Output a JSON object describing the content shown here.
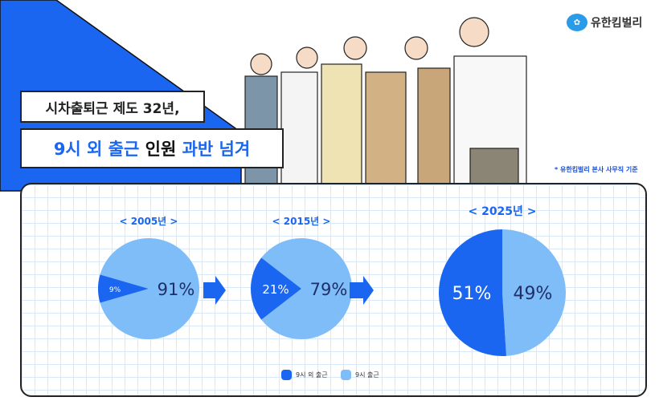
{
  "headline": {
    "line1": "시차출퇴근 제도 32년,",
    "line2": [
      {
        "text": "9시 외 출근",
        "color": "#1a66f0"
      },
      {
        "text": "인원",
        "color": "#111111"
      },
      {
        "text": "과반 넘겨",
        "color": "#1a66f0"
      }
    ]
  },
  "logo": {
    "mark": "YK",
    "name": "유한킴벌리"
  },
  "footnote": "* 유한킴벌리 본사 사무직 기준",
  "colors": {
    "accent": "#1a66f0",
    "light": "#7fbdf8",
    "label_dark": "#1f2f6a"
  },
  "chart_data": {
    "type": "pie",
    "legend": [
      "9시 외 출근",
      "9시 출근"
    ],
    "legend_placement": "bottom",
    "charts": [
      {
        "title": "< 2005년 >",
        "values": [
          9,
          91
        ],
        "labels": [
          "9%",
          "91%"
        ]
      },
      {
        "title": "< 2015년 >",
        "values": [
          21,
          79
        ],
        "labels": [
          "21%",
          "79%"
        ]
      },
      {
        "title": "< 2025년 >",
        "values": [
          51,
          49
        ],
        "labels": [
          "51%",
          "49%"
        ]
      }
    ]
  }
}
